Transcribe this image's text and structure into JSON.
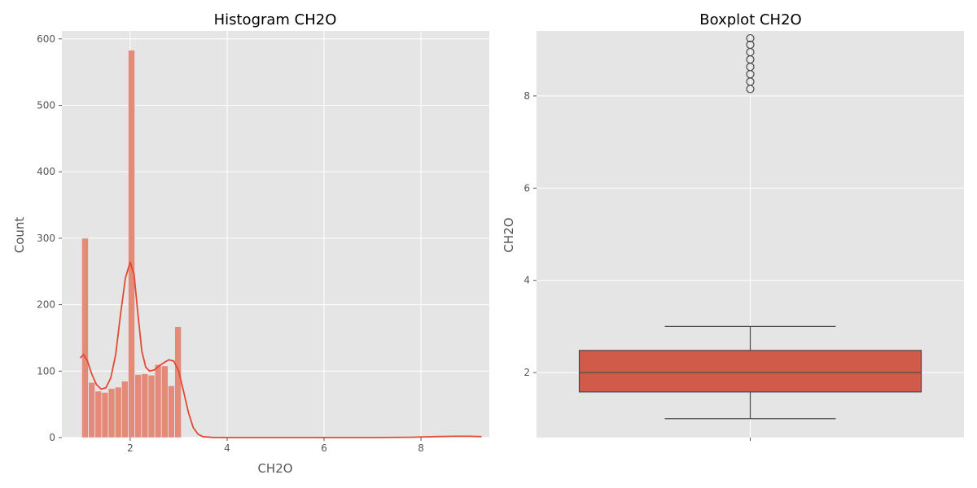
{
  "chart_data": [
    {
      "type": "bar",
      "title": "Histogram CH2O",
      "xlabel": "CH2O",
      "ylabel": "Count",
      "xlim": [
        0.59,
        9.41
      ],
      "ylim": [
        0,
        612
      ],
      "xticks": [
        2,
        4,
        6,
        8
      ],
      "yticks": [
        0,
        100,
        200,
        300,
        400,
        500,
        600
      ],
      "bin_width": 0.137,
      "bins": [
        {
          "x": 1.0,
          "count": 300
        },
        {
          "x": 1.137,
          "count": 83
        },
        {
          "x": 1.274,
          "count": 70
        },
        {
          "x": 1.411,
          "count": 68
        },
        {
          "x": 1.548,
          "count": 74
        },
        {
          "x": 1.685,
          "count": 76
        },
        {
          "x": 1.822,
          "count": 85
        },
        {
          "x": 1.959,
          "count": 583
        },
        {
          "x": 2.096,
          "count": 95
        },
        {
          "x": 2.233,
          "count": 96
        },
        {
          "x": 2.37,
          "count": 94
        },
        {
          "x": 2.507,
          "count": 110
        },
        {
          "x": 2.644,
          "count": 108
        },
        {
          "x": 2.781,
          "count": 78
        },
        {
          "x": 2.918,
          "count": 167
        }
      ],
      "kde": [
        {
          "x": 0.97,
          "y": 120
        },
        {
          "x": 1.04,
          "y": 125
        },
        {
          "x": 1.12,
          "y": 115
        },
        {
          "x": 1.2,
          "y": 97
        },
        {
          "x": 1.3,
          "y": 80
        },
        {
          "x": 1.4,
          "y": 73
        },
        {
          "x": 1.5,
          "y": 75
        },
        {
          "x": 1.6,
          "y": 90
        },
        {
          "x": 1.7,
          "y": 125
        },
        {
          "x": 1.8,
          "y": 185
        },
        {
          "x": 1.9,
          "y": 240
        },
        {
          "x": 2.0,
          "y": 264
        },
        {
          "x": 2.08,
          "y": 245
        },
        {
          "x": 2.16,
          "y": 185
        },
        {
          "x": 2.24,
          "y": 130
        },
        {
          "x": 2.32,
          "y": 106
        },
        {
          "x": 2.4,
          "y": 100
        },
        {
          "x": 2.5,
          "y": 102
        },
        {
          "x": 2.6,
          "y": 108
        },
        {
          "x": 2.7,
          "y": 113
        },
        {
          "x": 2.8,
          "y": 117
        },
        {
          "x": 2.9,
          "y": 115
        },
        {
          "x": 3.0,
          "y": 100
        },
        {
          "x": 3.1,
          "y": 70
        },
        {
          "x": 3.2,
          "y": 38
        },
        {
          "x": 3.3,
          "y": 15
        },
        {
          "x": 3.4,
          "y": 5
        },
        {
          "x": 3.5,
          "y": 1.5
        },
        {
          "x": 3.7,
          "y": 0.3
        },
        {
          "x": 4.0,
          "y": 0
        },
        {
          "x": 7.0,
          "y": 0
        },
        {
          "x": 7.8,
          "y": 0.5
        },
        {
          "x": 8.3,
          "y": 1.5
        },
        {
          "x": 8.7,
          "y": 2
        },
        {
          "x": 9.0,
          "y": 2
        },
        {
          "x": 9.25,
          "y": 1.5
        }
      ],
      "bar_color": "#e48a79",
      "line_color": "#e24a33",
      "grid": true
    },
    {
      "type": "box",
      "title": "Boxplot CH2O",
      "ylabel": "CH2O",
      "ylim": [
        0.59,
        9.41
      ],
      "yticks": [
        2,
        4,
        6,
        8
      ],
      "xticks": [
        ""
      ],
      "whisker_low": 1.0,
      "q1": 1.58,
      "median": 2.0,
      "q3": 2.48,
      "whisker_high": 3.0,
      "outliers": [
        8.15,
        8.31,
        8.47,
        8.63,
        8.79,
        8.95,
        9.11,
        9.25
      ],
      "box_color": "#cf5b48",
      "grid": true
    }
  ]
}
